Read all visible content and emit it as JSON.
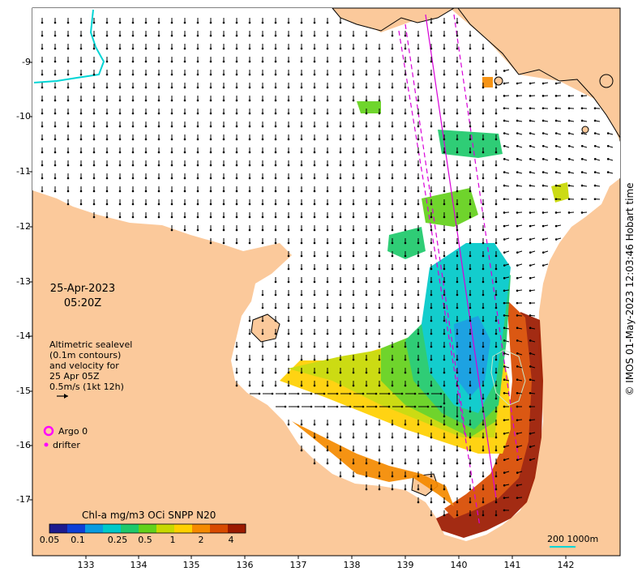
{
  "map": {
    "date": "25-Apr-2023",
    "time": "05:20Z",
    "sealevel_note": [
      "Altimetric sealevel",
      "(0.1m contours)",
      "and velocity for",
      "25 Apr 05Z",
      "0.5m/s (1kt 12h)"
    ],
    "legend": {
      "argo_label": "Argo 0",
      "drifter_label": "drifter",
      "argo_color": "#ff00ff",
      "drifter_color": "#ff00ff"
    },
    "colorbar": {
      "title": "Chl-a mg/m3 OCi SNPP N20",
      "ticks": [
        "0.05",
        "0.1",
        "0.25",
        "0.5",
        "1",
        "2",
        "4"
      ],
      "colors": [
        "#1d1b8f",
        "#0e3fd6",
        "#0a9be0",
        "#00c9c9",
        "#1ec96b",
        "#63d11b",
        "#c8d800",
        "#ffd000",
        "#f58a00",
        "#d84a00",
        "#9c1a00"
      ]
    },
    "scale_label": "200  1000m",
    "credit": "© IMOS 01-May-2023 12:03:46 Hobart time",
    "lat_ticks": [
      "-9",
      "-10",
      "-11",
      "-12",
      "-13",
      "-14",
      "-15",
      "-16",
      "-17"
    ],
    "lon_ticks": [
      "133",
      "134",
      "135",
      "136",
      "137",
      "138",
      "139",
      "140",
      "141",
      "142"
    ],
    "colors": {
      "land": "#fbc99b",
      "sea": "#ffffff",
      "coast": "#000000",
      "contour": "#00d5d5",
      "track": "#d800d8"
    }
  }
}
